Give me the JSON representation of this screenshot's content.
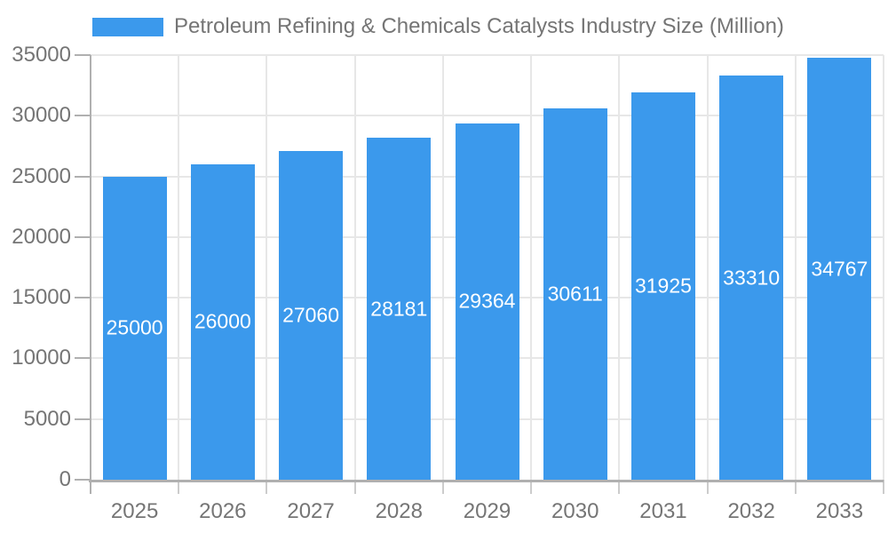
{
  "legend": {
    "label": "Petroleum Refining & Chemicals Catalysts Industry Size (Million)"
  },
  "chart_data": {
    "type": "bar",
    "title": "Petroleum Refining & Chemicals Catalysts Industry Size (Million)",
    "categories": [
      "2025",
      "2026",
      "2027",
      "2028",
      "2029",
      "2030",
      "2031",
      "2032",
      "2033"
    ],
    "series": [
      {
        "name": "Petroleum Refining & Chemicals Catalysts Industry Size (Million)",
        "values": [
          25000,
          26000,
          27060,
          28181,
          29364,
          30611,
          31925,
          33310,
          34767
        ]
      }
    ],
    "data_labels": [
      "25000",
      "26000",
      "27060",
      "28181",
      "29364",
      "30611",
      "31925",
      "33310",
      "34767"
    ],
    "xlabel": "",
    "ylabel": "",
    "ylim": [
      0,
      35000
    ],
    "ytick_step": 5000,
    "yticks": [
      "0",
      "5000",
      "10000",
      "15000",
      "20000",
      "25000",
      "30000",
      "35000"
    ],
    "grid": true,
    "legend_position": "top-left",
    "colors": {
      "bar": "#3B99EC",
      "axis_text": "#757575",
      "data_label_text": "#FFFFFF",
      "gridline": "#E7E7E7",
      "axis_line": "#B0B0B0",
      "background": "#FFFFFF"
    }
  }
}
